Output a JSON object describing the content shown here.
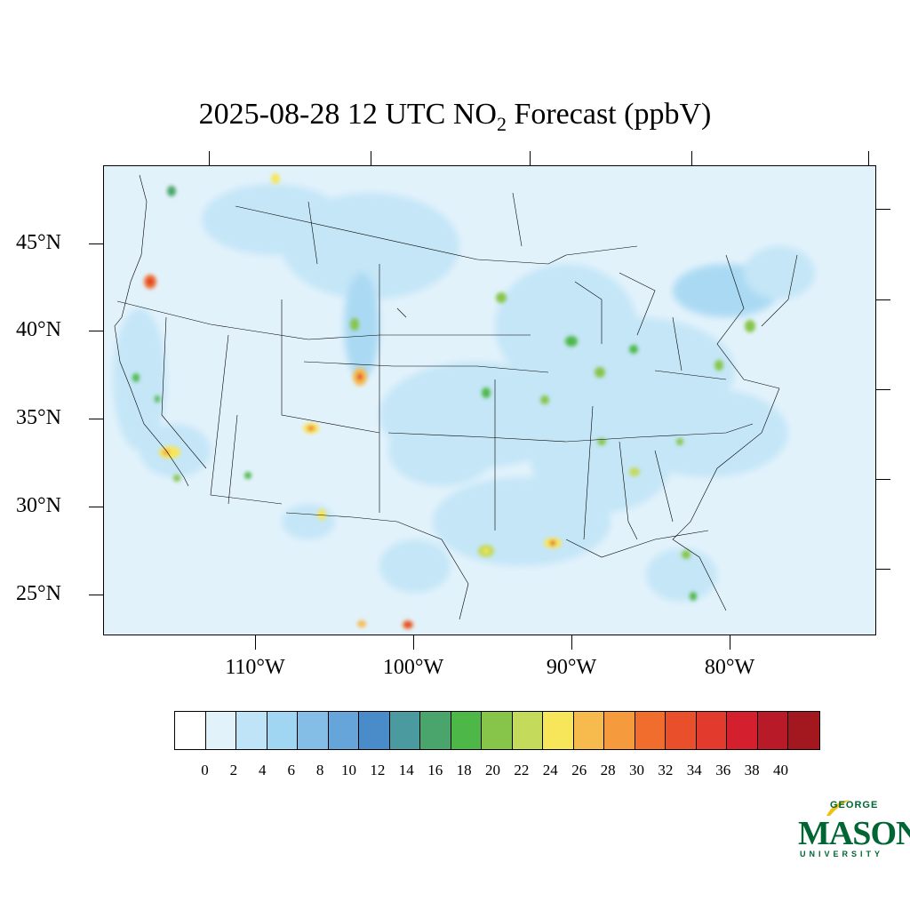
{
  "header": {
    "title_main": "2025-08-28 12 UTC NO",
    "title_sub": "2",
    "title_tail": " Forecast (ppbV)"
  },
  "axes": {
    "lat_labels": [
      "45°N",
      "40°N",
      "35°N",
      "30°N",
      "25°N"
    ],
    "lon_labels": [
      "110°W",
      "100°W",
      "90°W",
      "80°W"
    ]
  },
  "colorbar": {
    "labels": [
      "0",
      "2",
      "4",
      "6",
      "8",
      "10",
      "12",
      "14",
      "16",
      "18",
      "20",
      "22",
      "24",
      "26",
      "28",
      "30",
      "32",
      "34",
      "36",
      "38",
      "40"
    ],
    "colors": [
      "#ffffff",
      "#e2f2fb",
      "#bfe4f7",
      "#a1d6f2",
      "#84bde5",
      "#66a5d9",
      "#4a8cca",
      "#4a9aa0",
      "#49a56b",
      "#4db848",
      "#86c54a",
      "#c4da5a",
      "#f7e65a",
      "#f7bb4d",
      "#f59b3d",
      "#f16d2e",
      "#e84f2a",
      "#e23a2c",
      "#d41f2e",
      "#b81a28",
      "#a3171f"
    ]
  },
  "logo": {
    "line1": "GEORGE",
    "line2": "MASON",
    "line3": "UNIVERSITY",
    "color": "#006633"
  }
}
